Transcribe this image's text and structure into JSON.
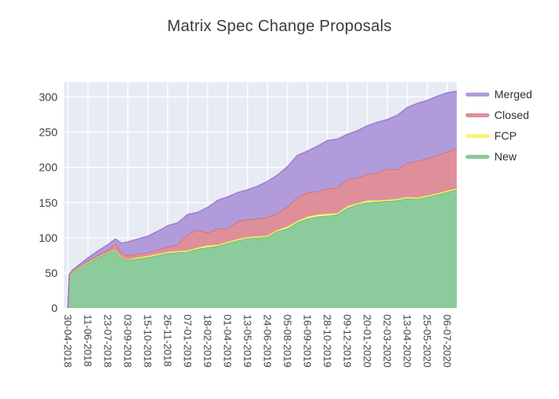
{
  "chart_data": {
    "type": "area",
    "stacked": true,
    "title": "Matrix Spec Change Proposals",
    "xlabel": "",
    "ylabel": "",
    "grid": true,
    "legend_position": "right",
    "plot_bg": "#e7ebf4",
    "grid_color": "#ffffff",
    "axis_text_color": "#3e3e3e",
    "y_ticks": [
      0,
      50,
      100,
      150,
      200,
      250,
      300
    ],
    "y_range": [
      0,
      321
    ],
    "x_tick_interval_days": 42,
    "x_tick_labels": [
      "30-04-2018",
      "11-06-2018",
      "23-07-2018",
      "03-09-2018",
      "15-10-2018",
      "26-11-2018",
      "07-01-2019",
      "18-02-2019",
      "01-04-2019",
      "13-05-2019",
      "24-06-2019",
      "05-08-2019",
      "16-09-2019",
      "28-10-2019",
      "09-12-2019",
      "20-01-2020",
      "02-03-2020",
      "13-04-2020",
      "25-05-2020",
      "06-07-2020"
    ],
    "x_days": [
      0,
      3,
      10,
      21,
      42,
      63,
      84,
      100,
      113,
      126,
      147,
      168,
      189,
      210,
      231,
      252,
      273,
      294,
      315,
      336,
      357,
      378,
      399,
      420,
      441,
      462,
      483,
      504,
      525,
      546,
      567,
      588,
      609,
      630,
      651,
      672,
      693,
      714,
      735,
      756,
      777,
      798,
      818
    ],
    "series": [
      {
        "name": "New",
        "fill": "#8ccb9b",
        "line": "#62b17d",
        "values": [
          0,
          46,
          52,
          56,
          64,
          72,
          78,
          82,
          71,
          68,
          70,
          72,
          75,
          78,
          79,
          80,
          84,
          86,
          88,
          92,
          96,
          99,
          100,
          101,
          109,
          113,
          122,
          127,
          130,
          131,
          133,
          142,
          147,
          150,
          151,
          152,
          153,
          156,
          155,
          158,
          161,
          165,
          168
        ]
      },
      {
        "name": "FCP",
        "fill": "#f5f57c",
        "line": "#e9e94f",
        "values": [
          0,
          0,
          0,
          1,
          1,
          1,
          1,
          1,
          1,
          1,
          2,
          2,
          2,
          2,
          2,
          2,
          2,
          3,
          2,
          2,
          2,
          2,
          2,
          2,
          2,
          3,
          2,
          3,
          3,
          3,
          2,
          3,
          2,
          3,
          2,
          2,
          2,
          2,
          2,
          2,
          2,
          2,
          2
        ]
      },
      {
        "name": "Closed",
        "fill": "#de8f9a",
        "line": "#d26b7a",
        "values": [
          0,
          1,
          1,
          1,
          2,
          2,
          3,
          9,
          6,
          6,
          5,
          5,
          6,
          7,
          9,
          23,
          25,
          18,
          23,
          19,
          25,
          25,
          25,
          26,
          24,
          28,
          34,
          34,
          33,
          36,
          36,
          38,
          36,
          38,
          39,
          44,
          42,
          48,
          52,
          53,
          54,
          55,
          58
        ]
      },
      {
        "name": "Merged",
        "fill": "#b29bda",
        "line": "#a07fd0",
        "values": [
          0,
          1,
          1,
          2,
          4,
          6,
          8,
          6,
          14,
          19,
          21,
          23,
          26,
          30,
          31,
          28,
          25,
          36,
          40,
          45,
          41,
          42,
          46,
          51,
          54,
          57,
          59,
          59,
          64,
          68,
          69,
          64,
          67,
          68,
          72,
          70,
          77,
          79,
          82,
          82,
          84,
          84,
          80
        ]
      }
    ],
    "legend": [
      {
        "label": "Merged",
        "color": "#b29bda"
      },
      {
        "label": "Closed",
        "color": "#de8f9a"
      },
      {
        "label": "FCP",
        "color": "#f5f57c"
      },
      {
        "label": "New",
        "color": "#8ccb9b"
      }
    ]
  }
}
